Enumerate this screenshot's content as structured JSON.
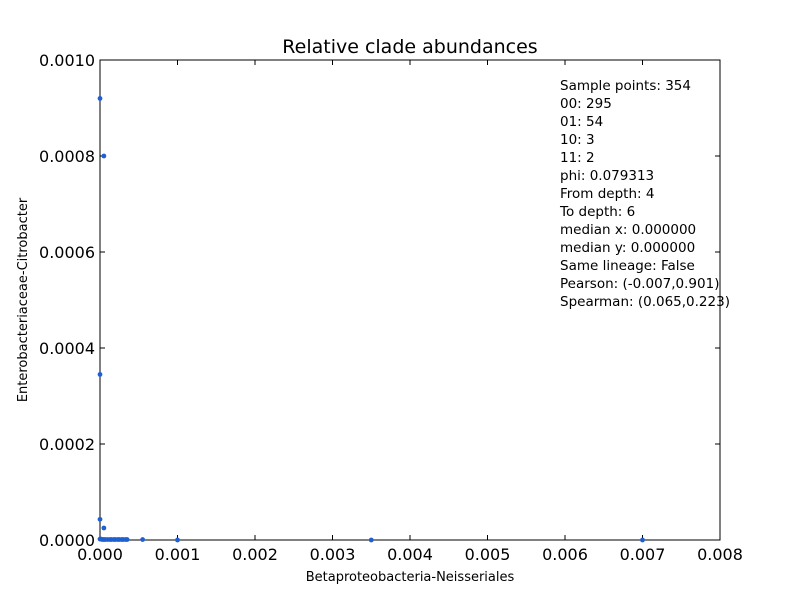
{
  "chart_data": {
    "type": "scatter",
    "title": "Relative clade abundances",
    "xlabel": "Betaproteobacteria-Neisseriales",
    "ylabel": "Enterobacteriaceae-Citrobacter",
    "xlim": [
      0,
      0.008
    ],
    "ylim": [
      0,
      0.001
    ],
    "xticks": [
      "0.000",
      "0.001",
      "0.002",
      "0.003",
      "0.004",
      "0.005",
      "0.006",
      "0.007",
      "0.008"
    ],
    "yticks": [
      "0.0000",
      "0.0002",
      "0.0004",
      "0.0006",
      "0.0008",
      "0.0010"
    ],
    "grid": false,
    "point_color": "#1f5fd0",
    "series": [
      {
        "x": [
          0.0,
          5e-05,
          0.0,
          0.0,
          5e-05,
          0.0,
          1e-05,
          3e-05,
          5e-05,
          7e-05,
          0.0001,
          0.00013,
          0.00015,
          0.00018,
          0.0002,
          0.00023,
          0.00025,
          0.00028,
          0.0003,
          0.00033,
          0.00035,
          0.00055,
          0.001,
          0.0035,
          0.007
        ],
        "y": [
          0.00092,
          0.0008,
          0.000345,
          4.3e-05,
          2.5e-05,
          2e-06,
          2e-06,
          1e-06,
          1e-06,
          1e-06,
          1e-06,
          1e-06,
          1e-06,
          1e-06,
          1e-06,
          1e-06,
          1e-06,
          1e-06,
          1e-06,
          1e-06,
          1e-06,
          1e-06,
          0.0,
          0.0,
          0.0
        ]
      }
    ],
    "annotation": [
      "Sample points: 354",
      "00: 295",
      "01: 54",
      "10: 3",
      "11: 2",
      "phi: 0.079313",
      "From depth: 4",
      "To depth: 6",
      "median x: 0.000000",
      "median y: 0.000000",
      "Same lineage: False",
      "Pearson: (-0.007,0.901)",
      "Spearman: (0.065,0.223)"
    ]
  }
}
